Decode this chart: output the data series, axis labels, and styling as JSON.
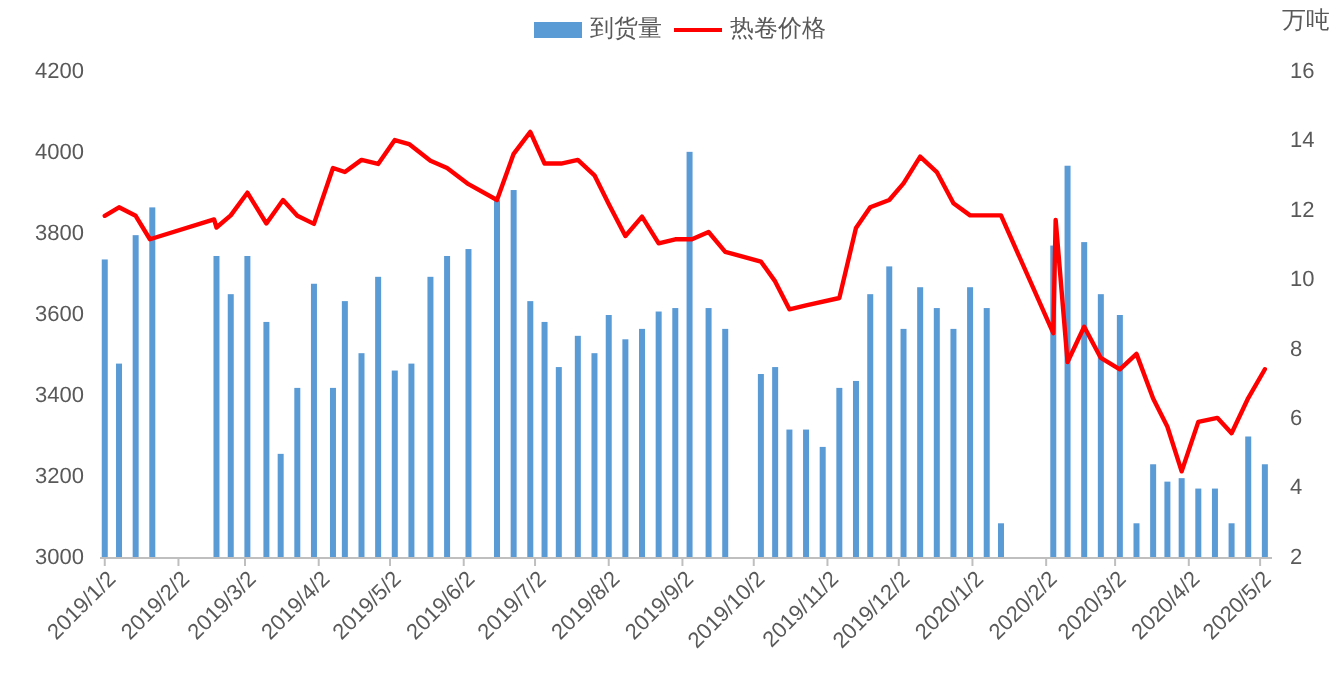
{
  "chart_data": {
    "type": "bar",
    "y2label": "万吨",
    "legend": "top",
    "xlim": [
      "2018-12-31",
      "2020-05-07"
    ],
    "xticks": [
      {
        "value": "2019-01-02",
        "label": "2019/1/2"
      },
      {
        "value": "2019-02-02",
        "label": "2019/2/2"
      },
      {
        "value": "2019-03-02",
        "label": "2019/3/2"
      },
      {
        "value": "2019-04-02",
        "label": "2019/4/2"
      },
      {
        "value": "2019-05-02",
        "label": "2019/5/2"
      },
      {
        "value": "2019-06-02",
        "label": "2019/6/2"
      },
      {
        "value": "2019-07-02",
        "label": "2019/7/2"
      },
      {
        "value": "2019-08-02",
        "label": "2019/8/2"
      },
      {
        "value": "2019-09-02",
        "label": "2019/9/2"
      },
      {
        "value": "2019-10-02",
        "label": "2019/10/2"
      },
      {
        "value": "2019-11-02",
        "label": "2019/11/2"
      },
      {
        "value": "2019-12-02",
        "label": "2019/12/2"
      },
      {
        "value": "2020-01-02",
        "label": "2020/1/2"
      },
      {
        "value": "2020-02-02",
        "label": "2020/2/2"
      },
      {
        "value": "2020-03-02",
        "label": "2020/3/2"
      },
      {
        "value": "2020-04-02",
        "label": "2020/4/2"
      },
      {
        "value": "2020-05-02",
        "label": "2020/5/2"
      }
    ],
    "ylim": [
      3000,
      4200
    ],
    "yticks": [
      3000,
      3200,
      3400,
      3600,
      3800,
      4000,
      4200
    ],
    "y2lim": [
      2,
      16
    ],
    "y2ticks": [
      2,
      4,
      6,
      8,
      10,
      12,
      14,
      16
    ],
    "series": [
      {
        "name": "到货量",
        "axis": "y2",
        "color": "#5b9bd5",
        "x": [
          "2019-01-02",
          "2019-01-08",
          "2019-01-15",
          "2019-01-22",
          "2019-02-18",
          "2019-02-24",
          "2019-03-03",
          "2019-03-11",
          "2019-03-17",
          "2019-03-24",
          "2019-03-31",
          "2019-04-08",
          "2019-04-13",
          "2019-04-20",
          "2019-04-27",
          "2019-05-04",
          "2019-05-11",
          "2019-05-19",
          "2019-05-26",
          "2019-06-04",
          "2019-06-16",
          "2019-06-23",
          "2019-06-30",
          "2019-07-06",
          "2019-07-12",
          "2019-07-20",
          "2019-07-27",
          "2019-08-02",
          "2019-08-09",
          "2019-08-16",
          "2019-08-23",
          "2019-08-30",
          "2019-09-05",
          "2019-09-13",
          "2019-09-20",
          "2019-10-05",
          "2019-10-11",
          "2019-10-17",
          "2019-10-24",
          "2019-10-31",
          "2019-11-07",
          "2019-11-14",
          "2019-11-20",
          "2019-11-28",
          "2019-12-04",
          "2019-12-11",
          "2019-12-18",
          "2019-12-25",
          "2020-01-01",
          "2020-01-08",
          "2020-01-14",
          "2020-02-05",
          "2020-02-11",
          "2020-02-18",
          "2020-02-25",
          "2020-03-04",
          "2020-03-11",
          "2020-03-18",
          "2020-03-24",
          "2020-03-30",
          "2020-04-06",
          "2020-04-13",
          "2020-04-20",
          "2020-04-27",
          "2020-05-04"
        ],
        "values": [
          10.6,
          7.6,
          11.3,
          12.1,
          10.7,
          9.6,
          10.7,
          8.8,
          5.0,
          6.9,
          9.9,
          6.9,
          9.4,
          7.9,
          10.1,
          7.4,
          7.6,
          10.1,
          10.7,
          10.9,
          12.3,
          12.6,
          9.4,
          8.8,
          7.5,
          8.4,
          7.9,
          9.0,
          8.3,
          8.6,
          9.1,
          9.2,
          13.7,
          9.2,
          8.6,
          7.3,
          7.5,
          5.7,
          5.7,
          5.2,
          6.9,
          7.1,
          9.6,
          10.4,
          8.6,
          9.8,
          9.2,
          8.6,
          9.8,
          9.2,
          3.0,
          11.0,
          13.3,
          11.1,
          9.6,
          9.0,
          3.0,
          4.7,
          4.2,
          4.3,
          4.0,
          4.0,
          3.0,
          5.5,
          4.7
        ]
      },
      {
        "name": "热卷价格",
        "type": "line",
        "color": "#ff0000",
        "x": [
          "2019-01-02",
          "2019-01-08",
          "2019-01-15",
          "2019-01-21",
          "2019-02-17",
          "2019-02-18",
          "2019-02-24",
          "2019-03-03",
          "2019-03-11",
          "2019-03-18",
          "2019-03-24",
          "2019-03-31",
          "2019-04-08",
          "2019-04-13",
          "2019-04-20",
          "2019-04-27",
          "2019-05-04",
          "2019-05-10",
          "2019-05-19",
          "2019-05-26",
          "2019-06-04",
          "2019-06-16",
          "2019-06-23",
          "2019-06-30",
          "2019-07-06",
          "2019-07-13",
          "2019-07-20",
          "2019-07-27",
          "2019-08-02",
          "2019-08-09",
          "2019-08-16",
          "2019-08-23",
          "2019-08-30",
          "2019-09-06",
          "2019-09-13",
          "2019-09-20",
          "2019-10-05",
          "2019-10-11",
          "2019-10-17",
          "2019-10-24",
          "2019-11-07",
          "2019-11-14",
          "2019-11-20",
          "2019-11-28",
          "2019-12-04",
          "2019-12-11",
          "2019-12-18",
          "2019-12-25",
          "2020-01-01",
          "2020-01-14",
          "2020-02-05",
          "2020-02-06",
          "2020-02-11",
          "2020-02-18",
          "2020-02-25",
          "2020-03-04",
          "2020-03-11",
          "2020-03-18",
          "2020-03-24",
          "2020-03-30",
          "2020-04-06",
          "2020-04-14",
          "2020-04-20",
          "2020-04-27",
          "2020-05-04"
        ],
        "values": [
          3845,
          3866,
          3845,
          3787,
          3836,
          3816,
          3846,
          3902,
          3826,
          3884,
          3845,
          3825,
          3963,
          3953,
          3983,
          3973,
          4032,
          4022,
          3981,
          3963,
          3923,
          3884,
          3998,
          4052,
          3974,
          3974,
          3983,
          3945,
          3874,
          3795,
          3843,
          3777,
          3787,
          3787,
          3805,
          3756,
          3732,
          3683,
          3614,
          3624,
          3642,
          3815,
          3866,
          3884,
          3925,
          3991,
          3953,
          3876,
          3846,
          3846,
          3555,
          3835,
          3484,
          3571,
          3494,
          3466,
          3504,
          3394,
          3324,
          3214,
          3336,
          3346,
          3308,
          3395,
          3466
        ]
      }
    ]
  }
}
